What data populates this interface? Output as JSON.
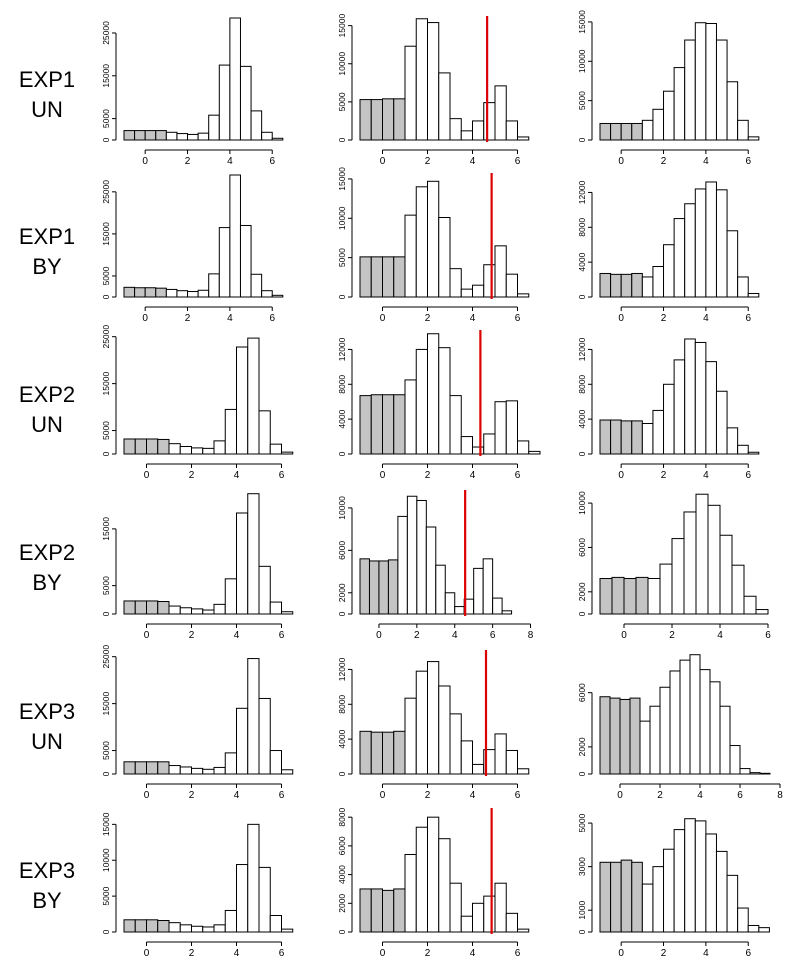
{
  "colors": {
    "shaded": "#c4c4c4",
    "open": "#ffffff",
    "outline": "#000000",
    "threshold": "#dd0000"
  },
  "rows": [
    {
      "exp": "EXP1",
      "cond": "UN"
    },
    {
      "exp": "EXP1",
      "cond": "BY"
    },
    {
      "exp": "EXP2",
      "cond": "UN"
    },
    {
      "exp": "EXP2",
      "cond": "BY"
    },
    {
      "exp": "EXP3",
      "cond": "UN"
    },
    {
      "exp": "EXP3",
      "cond": "BY"
    }
  ],
  "chart_data": [
    {
      "type": "bar",
      "row": 0,
      "col": 0,
      "bin_start": -1,
      "bin_width": 0.5,
      "shaded_bins": 4,
      "xlim": [
        -1,
        7.5
      ],
      "xticks": [
        0,
        2,
        4,
        6
      ],
      "ylim": [
        0,
        28500
      ],
      "yticks": [
        0,
        5000,
        15000,
        25000
      ],
      "ytick_labels": [
        "0",
        "5000",
        "15000",
        "25000"
      ],
      "values": [
        2200,
        2200,
        2200,
        2200,
        1800,
        1500,
        1300,
        1600,
        5800,
        17500,
        28500,
        17200,
        6800,
        1800,
        400
      ],
      "threshold": null
    },
    {
      "type": "bar",
      "row": 0,
      "col": 1,
      "bin_start": -1,
      "bin_width": 0.5,
      "shaded_bins": 4,
      "xlim": [
        -1,
        7
      ],
      "xticks": [
        0,
        2,
        4,
        6
      ],
      "ylim": [
        0,
        16000
      ],
      "yticks": [
        0,
        5000,
        10000,
        15000
      ],
      "ytick_labels": [
        "0",
        "5000",
        "10000",
        "15000"
      ],
      "values": [
        5300,
        5300,
        5400,
        5400,
        12300,
        15900,
        15400,
        8800,
        2800,
        1200,
        2500,
        4900,
        7100,
        2500,
        400
      ],
      "threshold": 4.65
    },
    {
      "type": "bar",
      "row": 0,
      "col": 2,
      "bin_start": -1,
      "bin_width": 0.5,
      "shaded_bins": 4,
      "xlim": [
        -1,
        7.5
      ],
      "xticks": [
        0,
        2,
        4,
        6
      ],
      "ylim": [
        0,
        15500
      ],
      "yticks": [
        0,
        5000,
        10000,
        15000
      ],
      "ytick_labels": [
        "0",
        "5000",
        "10000",
        "15000"
      ],
      "values": [
        2100,
        2100,
        2100,
        2100,
        2500,
        3900,
        6200,
        9200,
        12700,
        14900,
        14800,
        12700,
        7400,
        2500,
        400
      ],
      "threshold": null
    },
    {
      "type": "bar",
      "row": 1,
      "col": 0,
      "bin_start": -1,
      "bin_width": 0.5,
      "shaded_bins": 4,
      "xlim": [
        -1,
        7.5
      ],
      "xticks": [
        0,
        2,
        4,
        6
      ],
      "ylim": [
        0,
        29000
      ],
      "yticks": [
        0,
        5000,
        15000,
        25000
      ],
      "ytick_labels": [
        "0",
        "5000",
        "15000",
        "25000"
      ],
      "values": [
        2300,
        2200,
        2200,
        2100,
        1800,
        1500,
        1300,
        1600,
        5500,
        16500,
        29000,
        17000,
        5400,
        1500,
        400
      ],
      "threshold": null
    },
    {
      "type": "bar",
      "row": 1,
      "col": 1,
      "bin_start": -1,
      "bin_width": 0.5,
      "shaded_bins": 4,
      "xlim": [
        -1,
        7
      ],
      "xticks": [
        0,
        2,
        4,
        6
      ],
      "ylim": [
        0,
        15500
      ],
      "yticks": [
        0,
        5000,
        10000,
        15000
      ],
      "ytick_labels": [
        "0",
        "5000",
        "10000",
        "15000"
      ],
      "values": [
        5100,
        5100,
        5100,
        5100,
        10400,
        14000,
        14700,
        10100,
        3600,
        1000,
        1500,
        4100,
        6500,
        2900,
        400
      ],
      "threshold": 4.85
    },
    {
      "type": "bar",
      "row": 1,
      "col": 2,
      "bin_start": -1,
      "bin_width": 0.5,
      "shaded_bins": 4,
      "xlim": [
        -1,
        7.5
      ],
      "xticks": [
        0,
        2,
        4,
        6
      ],
      "ylim": [
        0,
        14000
      ],
      "yticks": [
        0,
        4000,
        8000,
        12000
      ],
      "ytick_labels": [
        "0",
        "4000",
        "8000",
        "12000"
      ],
      "values": [
        2700,
        2600,
        2600,
        2700,
        2300,
        3500,
        6000,
        9000,
        10700,
        12400,
        13200,
        12300,
        7600,
        2300,
        400
      ],
      "threshold": null
    },
    {
      "type": "bar",
      "row": 2,
      "col": 0,
      "bin_start": -1,
      "bin_width": 0.5,
      "shaded_bins": 4,
      "xlim": [
        -1,
        7
      ],
      "xticks": [
        0,
        2,
        4,
        6
      ],
      "ylim": [
        0,
        26000
      ],
      "yticks": [
        0,
        5000,
        15000,
        25000
      ],
      "ytick_labels": [
        "0",
        "5000",
        "15000",
        "25000"
      ],
      "values": [
        3200,
        3200,
        3200,
        3100,
        2200,
        1600,
        1300,
        1200,
        2800,
        9500,
        22800,
        24700,
        9200,
        2100,
        400
      ],
      "threshold": null
    },
    {
      "type": "bar",
      "row": 2,
      "col": 1,
      "bin_start": -1,
      "bin_width": 0.5,
      "shaded_bins": 4,
      "xlim": [
        -1,
        7
      ],
      "xticks": [
        0,
        2,
        4,
        6
      ],
      "ylim": [
        0,
        14000
      ],
      "yticks": [
        0,
        4000,
        8000,
        12000
      ],
      "ytick_labels": [
        "0",
        "4000",
        "8000",
        "12000"
      ],
      "values": [
        6700,
        6800,
        6800,
        6800,
        8500,
        12000,
        13800,
        12200,
        6700,
        2000,
        800,
        2300,
        6000,
        6100,
        1500,
        300
      ],
      "threshold": 4.35
    },
    {
      "type": "bar",
      "row": 2,
      "col": 2,
      "bin_start": -1,
      "bin_width": 0.5,
      "shaded_bins": 4,
      "xlim": [
        -1,
        7.5
      ],
      "xticks": [
        0,
        2,
        4,
        6
      ],
      "ylim": [
        0,
        14000
      ],
      "yticks": [
        0,
        4000,
        8000,
        12000
      ],
      "ytick_labels": [
        "0",
        "4000",
        "8000",
        "12000"
      ],
      "values": [
        3900,
        3900,
        3800,
        3800,
        3500,
        5000,
        8000,
        10800,
        13200,
        12800,
        10600,
        7200,
        3000,
        1000,
        200
      ],
      "threshold": null
    },
    {
      "type": "bar",
      "row": 3,
      "col": 0,
      "bin_start": -1,
      "bin_width": 0.5,
      "shaded_bins": 4,
      "xlim": [
        -1,
        7
      ],
      "xticks": [
        0,
        2,
        4,
        6
      ],
      "ylim": [
        0,
        21500
      ],
      "yticks": [
        0,
        5000,
        15000
      ],
      "ytick_labels": [
        "0",
        "5000",
        "15000"
      ],
      "values": [
        2300,
        2300,
        2300,
        2200,
        1400,
        1100,
        900,
        700,
        1700,
        6200,
        17800,
        21200,
        8400,
        2100,
        400
      ],
      "threshold": null
    },
    {
      "type": "bar",
      "row": 3,
      "col": 1,
      "bin_start": -1,
      "bin_width": 0.5,
      "shaded_bins": 4,
      "xlim": [
        -1,
        8.5
      ],
      "xticks": [
        0,
        2,
        4,
        6,
        8
      ],
      "ylim": [
        0,
        11500
      ],
      "yticks": [
        0,
        2000,
        6000,
        10000
      ],
      "ytick_labels": [
        "0",
        "2000",
        "6000",
        "10000"
      ],
      "values": [
        5200,
        5000,
        5000,
        5100,
        9200,
        11100,
        10700,
        8200,
        4600,
        2000,
        700,
        1400,
        4300,
        5200,
        1500,
        300
      ],
      "threshold": 4.55
    },
    {
      "type": "bar",
      "row": 3,
      "col": 2,
      "bin_start": -1,
      "bin_width": 0.5,
      "shaded_bins": 4,
      "xlim": [
        -1,
        6.5
      ],
      "xticks": [
        0,
        2,
        4,
        6
      ],
      "ylim": [
        0,
        11000
      ],
      "yticks": [
        0,
        2000,
        6000,
        10000
      ],
      "ytick_labels": [
        "0",
        "2000",
        "6000",
        "10000"
      ],
      "values": [
        3200,
        3300,
        3200,
        3300,
        3200,
        4500,
        6800,
        9200,
        10800,
        9800,
        7100,
        4400,
        1600,
        400
      ],
      "threshold": null
    },
    {
      "type": "bar",
      "row": 4,
      "col": 0,
      "bin_start": -1,
      "bin_width": 0.5,
      "shaded_bins": 4,
      "xlim": [
        -1,
        7
      ],
      "xticks": [
        0,
        2,
        4,
        6
      ],
      "ylim": [
        0,
        26000
      ],
      "yticks": [
        0,
        5000,
        15000,
        25000
      ],
      "ytick_labels": [
        "0",
        "5000",
        "15000",
        "25000"
      ],
      "values": [
        2600,
        2600,
        2600,
        2600,
        1800,
        1500,
        1200,
        1000,
        1400,
        4500,
        14000,
        24600,
        16100,
        5000,
        900
      ],
      "threshold": null
    },
    {
      "type": "bar",
      "row": 4,
      "col": 1,
      "bin_start": -1,
      "bin_width": 0.5,
      "shaded_bins": 4,
      "xlim": [
        -1,
        7
      ],
      "xticks": [
        0,
        2,
        4,
        6
      ],
      "ylim": [
        0,
        14000
      ],
      "yticks": [
        0,
        4000,
        8000,
        12000
      ],
      "ytick_labels": [
        "0",
        "4000",
        "8000",
        "12000"
      ],
      "values": [
        4900,
        4800,
        4800,
        4900,
        8700,
        11800,
        12900,
        10100,
        6900,
        3800,
        1100,
        2800,
        4600,
        2700,
        600
      ],
      "threshold": 4.6
    },
    {
      "type": "bar",
      "row": 4,
      "col": 2,
      "bin_start": -1,
      "bin_width": 0.5,
      "shaded_bins": 4,
      "xlim": [
        -1,
        8
      ],
      "xticks": [
        0,
        2,
        4,
        6,
        8
      ],
      "ylim": [
        0,
        9000
      ],
      "yticks": [
        0,
        2000,
        6000
      ],
      "ytick_labels": [
        "0",
        "2000",
        "6000"
      ],
      "values": [
        5700,
        5600,
        5500,
        5600,
        3900,
        5000,
        6400,
        7600,
        8400,
        8800,
        7700,
        6800,
        5000,
        2100,
        400,
        100,
        50
      ],
      "threshold": null
    },
    {
      "type": "bar",
      "row": 5,
      "col": 0,
      "bin_start": -1,
      "bin_width": 0.5,
      "shaded_bins": 4,
      "xlim": [
        -1,
        7
      ],
      "xticks": [
        0,
        2,
        4,
        6
      ],
      "ylim": [
        0,
        17000
      ],
      "yticks": [
        0,
        5000,
        10000,
        15000
      ],
      "ytick_labels": [
        "0",
        "5000",
        "10000",
        "15000"
      ],
      "values": [
        1700,
        1700,
        1700,
        1600,
        1300,
        1000,
        800,
        700,
        1000,
        3000,
        9400,
        15000,
        9000,
        2300,
        400
      ],
      "threshold": null
    },
    {
      "type": "bar",
      "row": 5,
      "col": 1,
      "bin_start": -1,
      "bin_width": 0.5,
      "shaded_bins": 4,
      "xlim": [
        -1,
        7
      ],
      "xticks": [
        0,
        2,
        4,
        6
      ],
      "ylim": [
        0,
        8500
      ],
      "yticks": [
        0,
        2000,
        4000,
        6000,
        8000
      ],
      "ytick_labels": [
        "0",
        "2000",
        "4000",
        "6000",
        "8000"
      ],
      "values": [
        3000,
        3000,
        2900,
        3000,
        5400,
        7300,
        8000,
        6500,
        3400,
        1100,
        2000,
        2500,
        3400,
        1300,
        200
      ],
      "threshold": 4.85
    },
    {
      "type": "bar",
      "row": 5,
      "col": 2,
      "bin_start": -1,
      "bin_width": 0.5,
      "shaded_bins": 4,
      "xlim": [
        -1,
        7.5
      ],
      "xticks": [
        0,
        2,
        4,
        6
      ],
      "ylim": [
        0,
        5600
      ],
      "yticks": [
        0,
        1000,
        3000,
        5000
      ],
      "ytick_labels": [
        "0",
        "1000",
        "3000",
        "5000"
      ],
      "values": [
        3200,
        3200,
        3300,
        3200,
        2200,
        3000,
        3800,
        4700,
        5200,
        5100,
        4500,
        3700,
        2600,
        1100,
        300,
        200
      ],
      "threshold": null
    }
  ]
}
